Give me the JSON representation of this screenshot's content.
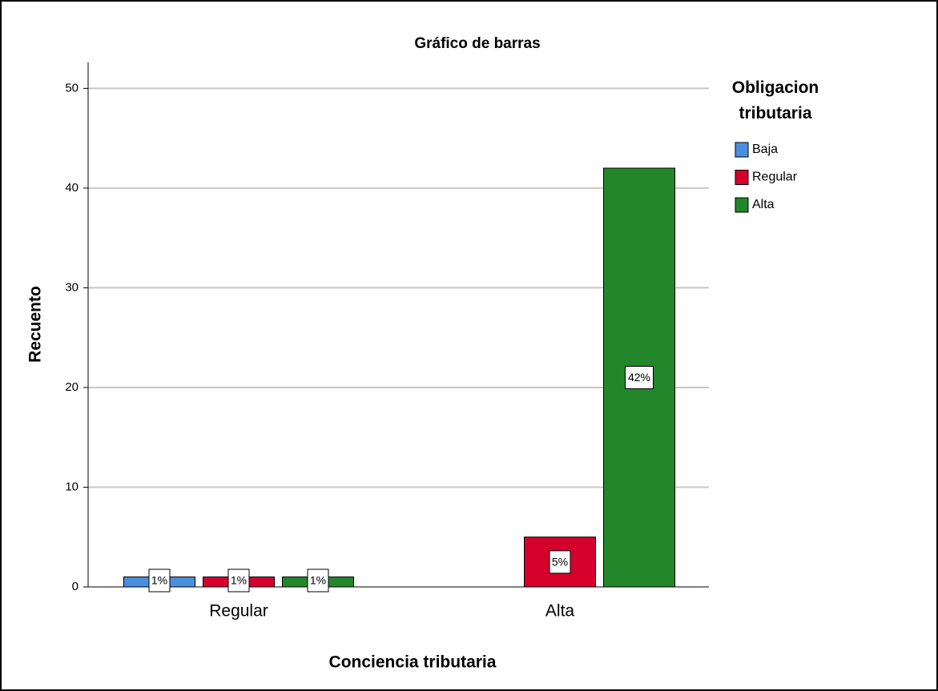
{
  "chart_data": {
    "type": "bar",
    "title": "Gráfico de barras",
    "x_label": "Conciencia tributaria",
    "y_label": "Recuento",
    "legend_title": "Obligacion tributaria",
    "categories": [
      "Regular",
      "Alta"
    ],
    "series": [
      {
        "name": "Baja",
        "color": "#4a8fde",
        "values": [
          1,
          null
        ],
        "value_labels": [
          "1%",
          null
        ]
      },
      {
        "name": "Regular",
        "color": "#d5002c",
        "values": [
          1,
          5
        ],
        "value_labels": [
          "1%",
          "5%"
        ]
      },
      {
        "name": "Alta",
        "color": "#24862b",
        "values": [
          1,
          42
        ],
        "value_labels": [
          "1%",
          "42%"
        ]
      }
    ],
    "ylim": [
      0,
      52.6
    ],
    "yticks": [
      0,
      10,
      20,
      30,
      40,
      50
    ],
    "grid": true,
    "legend": "right"
  }
}
